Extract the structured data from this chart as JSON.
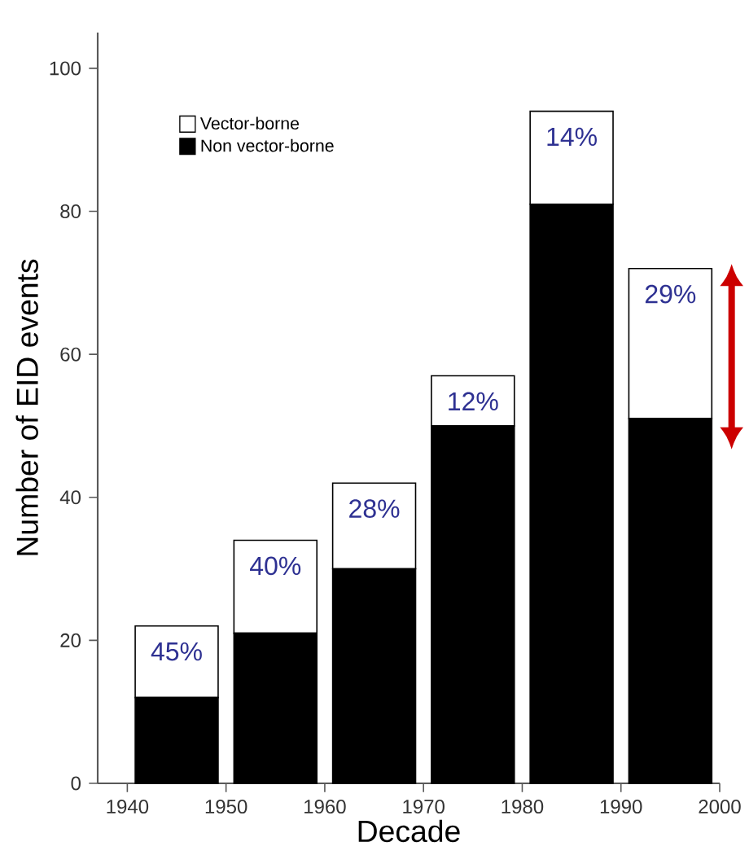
{
  "chart_data": {
    "type": "bar",
    "stacked": true,
    "xlabel": "Decade",
    "ylabel": "Number of EID events",
    "x": [
      1945,
      1955,
      1965,
      1975,
      1985,
      1995
    ],
    "series": [
      {
        "name": "Non vector-borne",
        "color": "#000000",
        "values": [
          12,
          21,
          30,
          50,
          81,
          51
        ]
      },
      {
        "name": "Vector-borne",
        "color": "#ffffff",
        "values": [
          10,
          13,
          12,
          7,
          13,
          21
        ]
      }
    ],
    "annotations": [
      {
        "text": "45%",
        "x": 1945,
        "y": 22
      },
      {
        "text": "40%",
        "x": 1955,
        "y": 34
      },
      {
        "text": "28%",
        "x": 1965,
        "y": 42
      },
      {
        "text": "12%",
        "x": 1975,
        "y": 57
      },
      {
        "text": "14%",
        "x": 1985,
        "y": 94
      },
      {
        "text": "29%",
        "x": 1995,
        "y": 72
      }
    ],
    "xlim": [
      1937,
      2000
    ],
    "xticks": [
      1940,
      1950,
      1960,
      1970,
      1980,
      1990,
      2000
    ],
    "ylim": [
      0,
      105
    ],
    "yticks": [
      0,
      20,
      40,
      60,
      80,
      100
    ],
    "legend": "top left"
  }
}
